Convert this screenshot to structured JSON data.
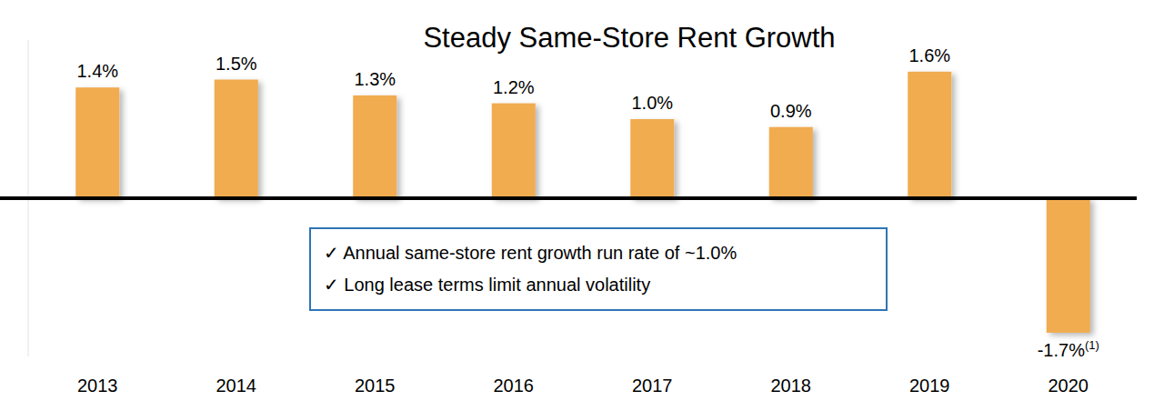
{
  "chart_data": {
    "type": "bar",
    "title": "Steady Same-Store Rent Growth",
    "categories": [
      "2013",
      "2014",
      "2015",
      "2016",
      "2017",
      "2018",
      "2019",
      "2020"
    ],
    "values": [
      1.4,
      1.5,
      1.3,
      1.2,
      1.0,
      0.9,
      1.6,
      -1.7
    ],
    "value_labels": [
      "1.4%",
      "1.5%",
      "1.3%",
      "1.2%",
      "1.0%",
      "0.9%",
      "1.6%",
      "-1.7%(1)"
    ],
    "color": "#f0ac50",
    "ylim": [
      -2.0,
      2.0
    ],
    "yticks": [
      0
    ],
    "grid": false,
    "data_labels": true,
    "tick_labels": "x",
    "annotations": [
      "✓  Annual same-store rent growth run rate of ~1.0%",
      "✓  Long lease terms limit annual volatility"
    ]
  }
}
